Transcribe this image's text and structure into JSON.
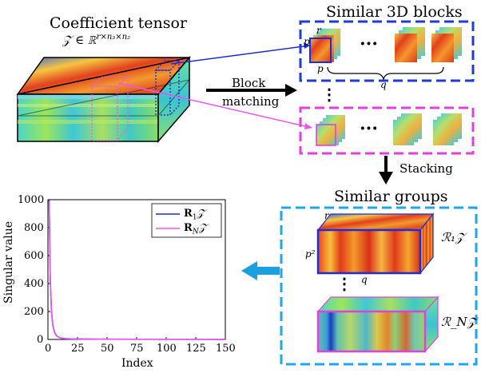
{
  "tensor": {
    "title": "Coefficient tensor",
    "formula": "𝒵 ∈ ℝ^{r×n₃×n₂}",
    "formula_main": "𝒵 ∈ ℝ",
    "formula_sup": "r×n₃×n₂"
  },
  "blocks": {
    "title": "Similar 3D blocks",
    "dim_r": "r",
    "dim_p_side": "p",
    "dim_p_bottom": "p",
    "dim_q": "q",
    "ellipsis": "···",
    "vdots": "⋮"
  },
  "arrows": {
    "block_matching_line1": "Block",
    "block_matching_line2": "matching",
    "stacking": "Stacking"
  },
  "groups": {
    "title": "Similar groups",
    "dim_r": "r",
    "dim_p2": "p²",
    "dim_q": "q",
    "label_1": "ℛ₁𝒵",
    "label_n": "ℛ_N𝒵",
    "vdots": "⋮"
  },
  "colors": {
    "blue_dashed": "#1f3bdc",
    "magenta_dashed": "#e040e0",
    "cyan_dashed": "#1ea7e8",
    "arrow_cyan": "#1aa0dd",
    "line_blue": "#1f2bd6",
    "line_magenta": "#ee55ee"
  },
  "chart_data": {
    "type": "line",
    "xlabel": "Index",
    "ylabel": "Singular value",
    "xlim": [
      0,
      150
    ],
    "ylim": [
      0,
      1000
    ],
    "xticks": [
      0,
      25,
      50,
      75,
      100,
      125,
      150
    ],
    "yticks": [
      0,
      200,
      400,
      600,
      800,
      1000
    ],
    "grid": false,
    "legend_position": "top-right",
    "series": [
      {
        "name": "R₁𝒵",
        "legend_main": "R",
        "legend_sub": "1",
        "legend_tail": "𝒵",
        "color": "#1f2bd6",
        "x": [
          1,
          2,
          3,
          4,
          5,
          6,
          7,
          8,
          9,
          10,
          12,
          15,
          20,
          30,
          50,
          100,
          150
        ],
        "y": [
          1000,
          420,
          200,
          110,
          70,
          45,
          30,
          22,
          17,
          13,
          9,
          6,
          4,
          3,
          2,
          1,
          0.5
        ]
      },
      {
        "name": "R_N𝒵",
        "legend_main": "R",
        "legend_sub": "N",
        "legend_tail": "𝒵",
        "color": "#ee55ee",
        "x": [
          1,
          2,
          3,
          4,
          5,
          6,
          7,
          8,
          9,
          10,
          12,
          15,
          20,
          30,
          50,
          100,
          150
        ],
        "y": [
          990,
          410,
          195,
          105,
          66,
          42,
          28,
          21,
          16,
          12,
          8,
          5.5,
          3.5,
          2.5,
          1.8,
          1,
          0.5
        ]
      }
    ]
  }
}
